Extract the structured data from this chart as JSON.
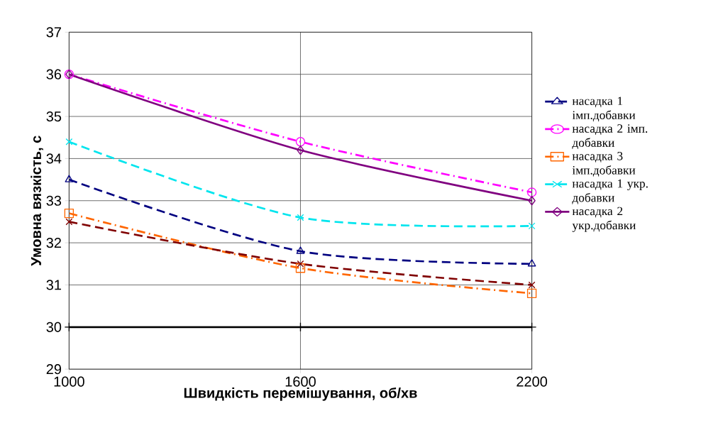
{
  "chart_data": {
    "type": "line",
    "xlabel": "Швидкість перемішування, об/хв",
    "ylabel": "Умовна вязкість, с",
    "x": [
      1000,
      1600,
      2200
    ],
    "xlim": [
      1000,
      2200
    ],
    "xticks": [
      1000,
      1600,
      2200
    ],
    "ylim": [
      29,
      37
    ],
    "yticks": [
      29,
      30,
      31,
      32,
      33,
      34,
      35,
      36,
      37
    ],
    "grid": true,
    "legend": "right",
    "series": [
      {
        "name": "насадка 1 імп.добавки",
        "color": "#000080",
        "values": [
          33.5,
          31.8,
          31.5
        ],
        "marker": "triangle",
        "line_style": "dashed"
      },
      {
        "name": "насадка 2 імп. добавки",
        "color": "#ff00ff",
        "values": [
          36,
          34.4,
          33.2
        ],
        "marker": "circle",
        "line_style": "dashdot"
      },
      {
        "name": "насадка 3 імп.добавки",
        "color": "#ff6600",
        "values": [
          32.7,
          31.4,
          30.8
        ],
        "marker": "square",
        "line_style": "dashdot"
      },
      {
        "name": "насадка 1 укр. добавки",
        "color": "#00e5ee",
        "values": [
          34.4,
          32.6,
          32.4
        ],
        "marker": "cross",
        "line_style": "dashed"
      },
      {
        "name": "насадка 2 укр.добавки",
        "color": "#800080",
        "values": [
          36,
          34.2,
          33
        ],
        "marker": "diamond",
        "line_style": "solid"
      },
      {
        "color": "#800000",
        "values": [
          32.5,
          31.5,
          31
        ],
        "marker": "cross",
        "line_style": "dashed"
      },
      {
        "color": "#000000",
        "values": [
          30,
          30,
          30
        ],
        "marker": "plus",
        "line_style": "solid"
      }
    ]
  }
}
